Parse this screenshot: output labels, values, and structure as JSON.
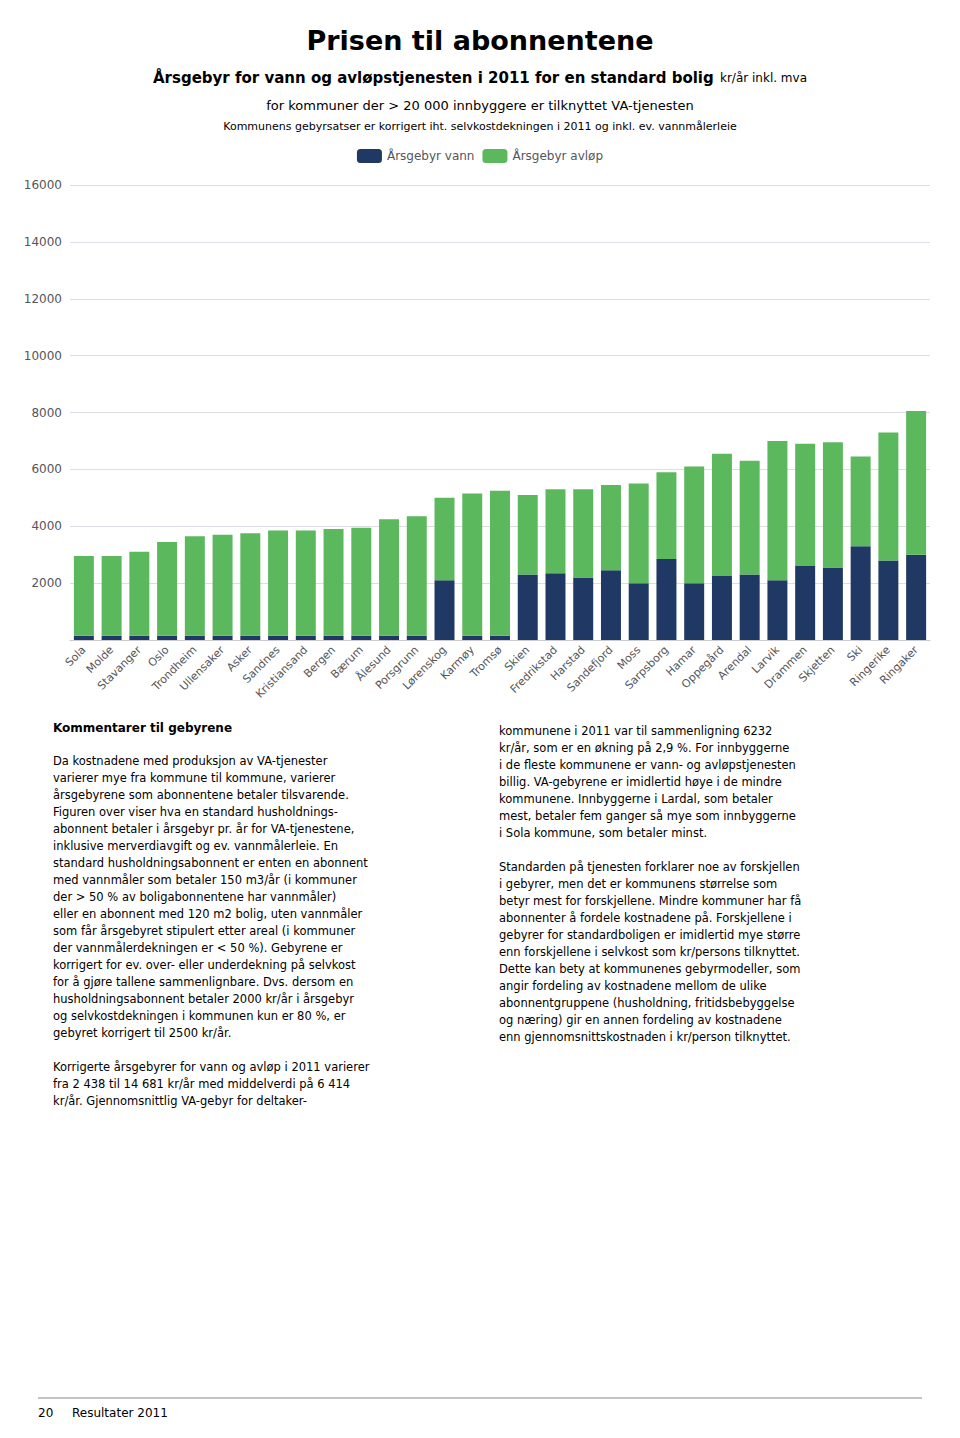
{
  "chart_data": {
    "type": "bar",
    "title": "Prisen til abonnentene",
    "subtitle": [
      "Årsgebyr for vann og avløpstjenesten i 2011 for en standard bolig",
      "kr/år inkl. mva",
      "for kommuner der > 20 000 innbyggere er tilknyttet VA-tjenesten",
      "Kommunens gebyrsatser er korrigert iht. selvkostdekningen i 2011 og inkl. ev. vannmålerleie"
    ],
    "annotations": [
      "Kommentarer til gebyrene",
      "Da kostnadene med produksjon av VA-tjenester\nvarierer mye fra kommune til kommune, varierer\nårsgebyrene som abonnentene betaler tilsvarende.\nFiguren over viser hva en standard husholdnings-\nabonnent betaler i årsgebyr pr. år for VA-tjenestene,\ninklusive merverdiavgift og ev. vannmålerleie. En\nstandard husholdningsabonnent er enten en abonnent\nmed vannmåler som betaler 150 m3/år (i kommuner\nder > 50 % av boligabonnentene har vannmåler)\neller en abonnent med 120 m2 bolig, uten vannmåler\nsom får årsgebyret stipulert etter areal (i kommuner\nder vannmålerdekningen er < 50 %). Gebyrene er\nkorrigert for ev. over- eller underdekning på selvkost\nfor å gjøre tallene sammenlignbare. Dvs. dersom en\nhusholdningsabonnent betaler 2000 kr/år i årsgebyr\nog selvkostdekningen i kommunen kun er 80 %, er\ngebyret korrigert til 2500 kr/år.\n\nKorrigerte årsgebyrer for vann og avløp i 2011 varierer\nfra 2 438 til 14 681 kr/år med middelverdi på 6 414\nkr/år. Gjennomsnittlig VA-gebyr for deltaker-",
      "kommunene i 2011 var til sammenligning 6232\nkr/år, som er en økning på 2,9 %. For innbyggerne\ni de fleste kommunene er vann- og avløpstjenesten\nbillig. VA-gebyrene er imidlertid høye i de mindre\nkommunene. Innbyggerne i Lardal, som betaler\nmest, betaler fem ganger så mye som innbyggerne\ni Sola kommune, som betaler minst.\n\nStandarden på tjenesten forklarer noe av forskjellen\ni gebyrer, men det er kommunens størrelse som\nbetyr mest for forskjellene. Mindre kommuner har få\nabonnenter å fordele kostnadene på. Forskjellene i\ngebyrer for standardboligen er imidlertid mye større\nenn forskjellene i selvkost som kr/persons tilknyttet.\nDette kan bety at kommunenes gebyrmodeller, som\nangir fordeling av kostnadene mellom de ulike\nabonnentgruppene (husholdning, fritidsbebyggelse\nog næring) gir en annen fordeling av kostnadene\nenn gjennomsnittskostnaden i kr/person tilknyttet.",
      "20",
      "Resultater 2011"
    ],
    "categories": [
      "Sola",
      "Molde",
      "Stavanger",
      "Oslo",
      "Trondheim",
      "Ullensaker",
      "Asker",
      "Sandnes",
      "Kristiansand",
      "Bergen",
      "Bærum",
      "Ålesund",
      "Porsgrunn",
      "Lørenskog",
      "Karmøy",
      "Tromsø",
      "Skien",
      "Fredrikstad",
      "Harstad",
      "Sandefjord",
      "Moss",
      "Sarpsborg",
      "Hamar",
      "Oppegård",
      "Arendal",
      "Larvik",
      "Drammen",
      "Skjetten",
      "Ski",
      "Ringerike",
      "Ringaker"
    ],
    "series": [
      {
        "name": "Årsgebyr vann",
        "color": "#1f3864",
        "values": [
          150,
          150,
          150,
          150,
          150,
          150,
          150,
          150,
          150,
          150,
          150,
          150,
          150,
          2100,
          150,
          150,
          2300,
          2350,
          2200,
          2450,
          2000,
          2850,
          2000,
          2250,
          2300,
          2100,
          2600,
          2550,
          3300,
          2800,
          3000
        ]
      },
      {
        "name": "Årsgebyr avløp",
        "color": "#5cb85c",
        "values": [
          2800,
          2800,
          2950,
          3300,
          3500,
          3550,
          3600,
          3700,
          3700,
          3750,
          3800,
          4100,
          4200,
          2900,
          5000,
          5100,
          2800,
          2950,
          3100,
          3000,
          3500,
          3050,
          4100,
          4300,
          4000,
          4900,
          4300,
          4400,
          3150,
          4500,
          5050
        ]
      }
    ],
    "stacked": true,
    "ylim": [
      0,
      16000
    ],
    "yticks": [
      {
        "value": 0,
        "label": null
      },
      2000,
      4000,
      6000,
      8000,
      10000,
      12000,
      14000,
      16000
    ],
    "grid": true,
    "legend": "top"
  }
}
